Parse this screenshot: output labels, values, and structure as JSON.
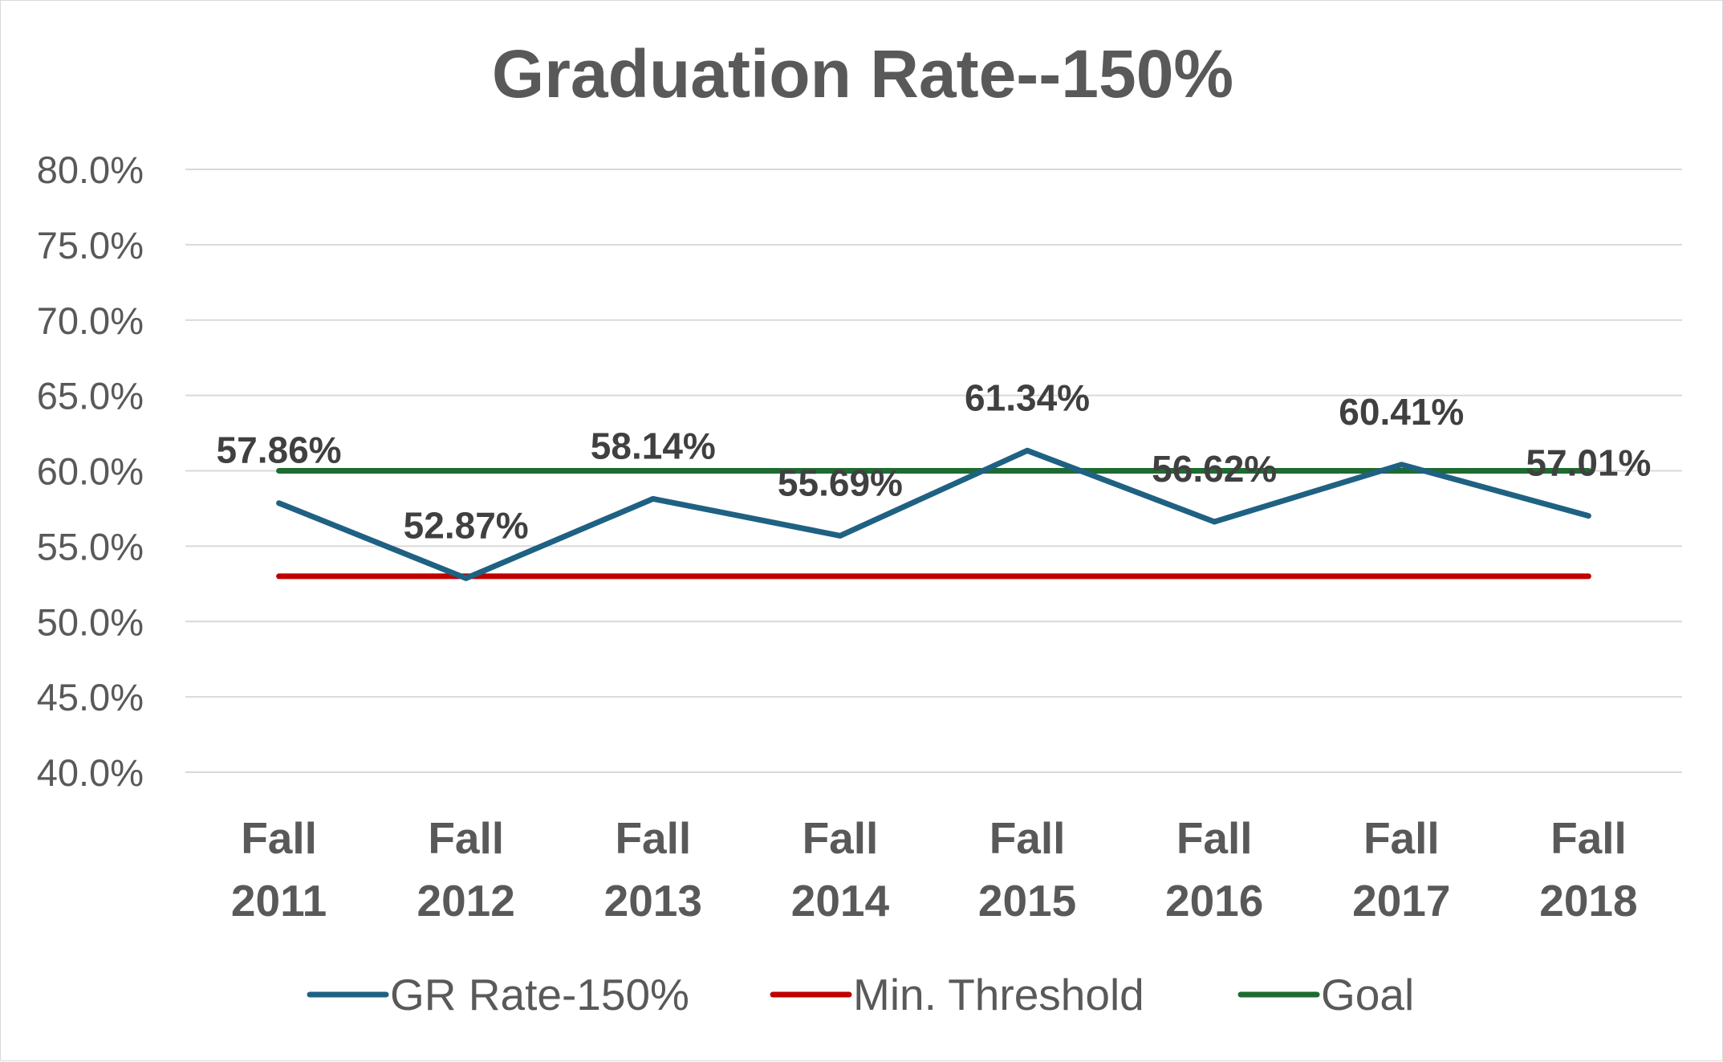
{
  "chart_data": {
    "type": "line",
    "title": "Graduation Rate--150%",
    "xlabel": "",
    "ylabel": "",
    "categories": [
      [
        "Fall",
        "2011"
      ],
      [
        "Fall",
        "2012"
      ],
      [
        "Fall",
        "2013"
      ],
      [
        "Fall",
        "2014"
      ],
      [
        "Fall",
        "2015"
      ],
      [
        "Fall",
        "2016"
      ],
      [
        "Fall",
        "2017"
      ],
      [
        "Fall",
        "2018"
      ]
    ],
    "ylim": [
      40,
      80
    ],
    "yticks": [
      "40.0%",
      "45.0%",
      "50.0%",
      "55.0%",
      "60.0%",
      "65.0%",
      "70.0%",
      "75.0%",
      "80.0%"
    ],
    "grid": true,
    "legend_position": "bottom",
    "series": [
      {
        "name": "GR Rate-150%",
        "color": "#1f6182",
        "values": [
          57.86,
          52.87,
          58.14,
          55.69,
          61.34,
          56.62,
          60.41,
          57.01
        ],
        "labels": [
          "57.86%",
          "52.87%",
          "58.14%",
          "55.69%",
          "61.34%",
          "56.62%",
          "60.41%",
          "57.01%"
        ]
      },
      {
        "name": "Min. Threshold",
        "color": "#c00000",
        "values": [
          53,
          53,
          53,
          53,
          53,
          53,
          53,
          53
        ]
      },
      {
        "name": "Goal",
        "color": "#1e6b30",
        "values": [
          60,
          60,
          60,
          60,
          60,
          60,
          60,
          60
        ]
      }
    ]
  }
}
